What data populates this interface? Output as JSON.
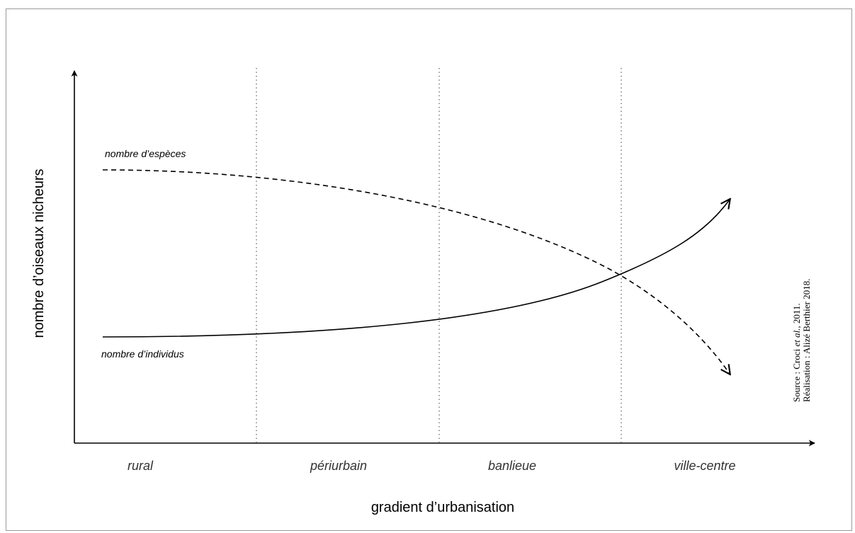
{
  "y_axis_label": "nombre d’oiseaux nicheurs",
  "x_axis_label": "gradient d’urbanisation",
  "zones": [
    "rural",
    "périurbain",
    "banlieue",
    "ville-centre"
  ],
  "curves": {
    "species": {
      "label": "nombre d’espèces",
      "trend": "decreasing",
      "style": "dashed"
    },
    "individuals": {
      "label": "nombre d’individus",
      "trend": "increasing",
      "style": "solid"
    }
  },
  "source": {
    "prefix": "Source : Croci ",
    "etal": "et al.",
    "suffix": ", 2011.",
    "credit": "Réalisation : Alizé Berthier 2018."
  },
  "colors": {
    "line": "#000000",
    "zone_divider": "#6a6a6a",
    "label_gray": "#333333",
    "frame": "#9a9a9a"
  }
}
